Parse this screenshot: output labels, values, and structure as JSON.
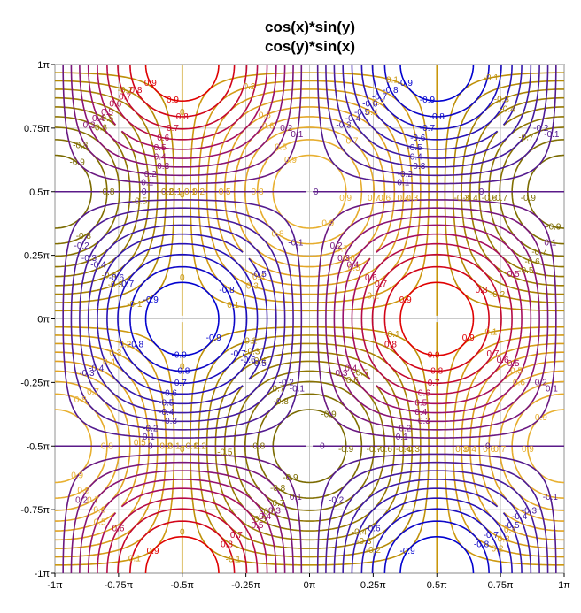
{
  "chart_data": {
    "type": "contour",
    "titles": [
      {
        "text": "cos(x)*sin(y)",
        "color": "#c8960a"
      },
      {
        "text": "cos(y)*sin(x)",
        "color": "#7a1a78"
      }
    ],
    "xlim": [
      -1,
      1
    ],
    "ylim": [
      -1,
      1
    ],
    "x_unit": "π",
    "y_unit": "π",
    "x_ticks": [
      {
        "value": -1,
        "label": "-1π"
      },
      {
        "value": -0.75,
        "label": "-0.75π"
      },
      {
        "value": -0.5,
        "label": "-0.5π"
      },
      {
        "value": -0.25,
        "label": "-0.25π"
      },
      {
        "value": 0,
        "label": "0π"
      },
      {
        "value": 0.25,
        "label": "0.25π"
      },
      {
        "value": 0.5,
        "label": "0.5π"
      },
      {
        "value": 0.75,
        "label": "0.75π"
      },
      {
        "value": 1,
        "label": "1π"
      }
    ],
    "y_ticks": [
      {
        "value": 1,
        "label": "1π"
      },
      {
        "value": 0.75,
        "label": "0.75π"
      },
      {
        "value": 0.5,
        "label": "0.5π"
      },
      {
        "value": 0.25,
        "label": "0.25π"
      },
      {
        "value": 0,
        "label": "0π"
      },
      {
        "value": -0.25,
        "label": "-0.25π"
      },
      {
        "value": -0.5,
        "label": "-0.5π"
      },
      {
        "value": -0.75,
        "label": "-0.75π"
      },
      {
        "value": -1,
        "label": "-1π"
      }
    ],
    "grid": true,
    "levels": [
      -0.9,
      -0.8,
      -0.7,
      -0.6,
      -0.5,
      -0.4,
      -0.3,
      -0.2,
      -0.1,
      0,
      0.1,
      0.2,
      0.3,
      0.4,
      0.5,
      0.6,
      0.7,
      0.8,
      0.9
    ],
    "level_labels": [
      "-0.9",
      "-0.8",
      "-0.7",
      "-0.6",
      "-0.5",
      "-0.4",
      "-0.3",
      "-0.2",
      "-0.1",
      "0",
      "0.1",
      "0.2",
      "0.3",
      "0.4",
      "0.5",
      "0.6",
      "0.7",
      "0.8",
      "0.9"
    ],
    "series": [
      {
        "name": "cos(x)*sin(y)",
        "function": "cos(x)*sin(y)",
        "colormap": [
          "#7a6a00",
          "#9a7a00",
          "#c8960a",
          "#e0a020",
          "#e8b030"
        ]
      },
      {
        "name": "cos(y)*sin(x)",
        "function": "cos(y)*sin(x)",
        "colormap": [
          "#0000d0",
          "#3a1aa8",
          "#5a1a88",
          "#a0106a",
          "#e00000"
        ]
      }
    ]
  }
}
